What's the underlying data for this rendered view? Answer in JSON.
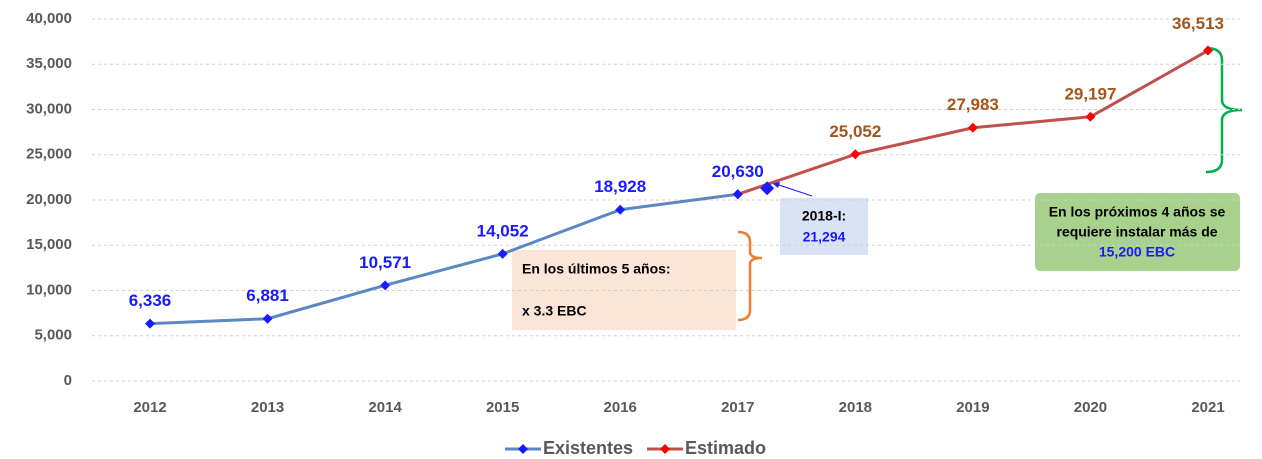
{
  "chart_data": {
    "type": "line",
    "categories": [
      "2012",
      "2013",
      "2014",
      "2015",
      "2016",
      "2017",
      "2018",
      "2019",
      "2020",
      "2021"
    ],
    "series": [
      {
        "name": "Existentes",
        "color": "#5b87c2",
        "marker_color": "#1a1aff",
        "label_color": "#1a1aff",
        "values": [
          6336,
          6881,
          10571,
          14052,
          18928,
          20630,
          null,
          null,
          null,
          null
        ],
        "value_labels": [
          "6,336",
          "6,881",
          "10,571",
          "14,052",
          "18,928",
          "20,630",
          null,
          null,
          null,
          null
        ]
      },
      {
        "name": "Estimado",
        "color": "#c0504d",
        "marker_color": "#ff0000",
        "label_color": "#a85418",
        "values": [
          null,
          null,
          null,
          null,
          null,
          20630,
          25052,
          27983,
          29197,
          36513
        ],
        "value_labels": [
          null,
          null,
          null,
          null,
          null,
          null,
          "25,052",
          "27,983",
          "29,197",
          "36,513"
        ]
      }
    ],
    "ylim": [
      0,
      40000
    ],
    "yticks": [
      0,
      {
        "value": 5000,
        "label": "5,000"
      },
      {
        "value": 10000,
        "label": "10,000"
      },
      {
        "value": 15000,
        "label": "15,000"
      },
      {
        "value": 20000,
        "label": "20,000"
      },
      {
        "value": 25000,
        "label": "25,000"
      },
      {
        "value": 30000,
        "label": "30,000"
      },
      {
        "value": 35000,
        "label": "35,000"
      },
      {
        "value": 40000,
        "label": "40,000"
      }
    ],
    "grid": true,
    "legend": "bottom",
    "point": {
      "title": "2018-I:",
      "value": 21294,
      "value_label": "21,294"
    },
    "note_past": [
      "En los últimos 5 años:",
      "x 3.3 EBC"
    ],
    "note_future": [
      "En los próximos 4 años se",
      "requiere instalar más de",
      "15,200 EBC"
    ]
  }
}
